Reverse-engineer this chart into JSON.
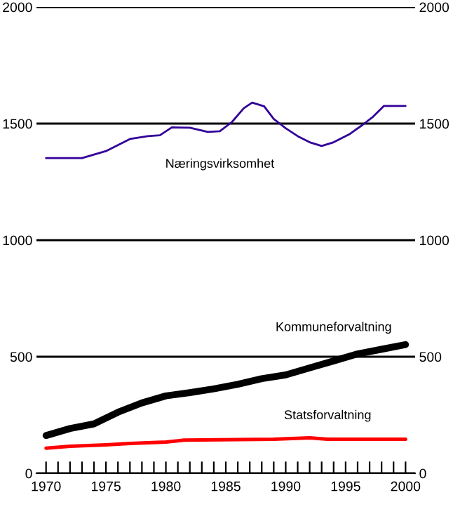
{
  "chart_data": {
    "type": "line",
    "xlim": [
      1969.2,
      2000.8
    ],
    "xticks": [
      1970,
      {
        "value": 1971,
        "label": null
      },
      {
        "value": 1972,
        "label": null
      },
      {
        "value": 1973,
        "label": null
      },
      {
        "value": 1974,
        "label": null
      },
      1975,
      {
        "value": 1976,
        "label": null
      },
      {
        "value": 1977,
        "label": null
      },
      {
        "value": 1978,
        "label": null
      },
      {
        "value": 1979,
        "label": null
      },
      1980,
      {
        "value": 1981,
        "label": null
      },
      {
        "value": 1982,
        "label": null
      },
      {
        "value": 1983,
        "label": null
      },
      {
        "value": 1984,
        "label": null
      },
      1985,
      {
        "value": 1986,
        "label": null
      },
      {
        "value": 1987,
        "label": null
      },
      {
        "value": 1988,
        "label": null
      },
      {
        "value": 1989,
        "label": null
      },
      1990,
      {
        "value": 1991,
        "label": null
      },
      {
        "value": 1992,
        "label": null
      },
      {
        "value": 1993,
        "label": null
      },
      {
        "value": 1994,
        "label": null
      },
      1995,
      {
        "value": 1996,
        "label": null
      },
      {
        "value": 1997,
        "label": null
      },
      {
        "value": 1998,
        "label": null
      },
      {
        "value": 1999,
        "label": null
      },
      2000
    ],
    "ylim": [
      0,
      2000
    ],
    "yticks": [
      0,
      500,
      1000,
      1500,
      2000
    ],
    "y2lim": [
      0,
      2000
    ],
    "y2ticks": [
      0,
      500,
      1000,
      1500,
      2000
    ],
    "grid": "y",
    "legend": false,
    "marker": "none",
    "line_style": "solid",
    "series": [
      {
        "name": "Næringsvirksomhet",
        "color": "#330099",
        "x": [
          1970,
          1973,
          1975,
          1977,
          1978.5,
          1979.5,
          1980.5,
          1982,
          1983.5,
          1984.5,
          1985.5,
          1986.5,
          1987.2,
          1988.2,
          1989,
          1990,
          1991,
          1992,
          1993,
          1994,
          1995.3,
          1996.4,
          1997.3,
          1998.2,
          2000
        ],
        "values": [
          1352,
          1352,
          1382,
          1434,
          1446,
          1450,
          1484,
          1482,
          1464,
          1467,
          1506,
          1566,
          1590,
          1574,
          1520,
          1480,
          1446,
          1420,
          1404,
          1420,
          1454,
          1494,
          1530,
          1576,
          1576
        ]
      },
      {
        "name": "Kommuneforvaltning",
        "color": "#000000",
        "x": [
          1970,
          1972,
          1974,
          1976,
          1978,
          1980,
          1982,
          1984,
          1986,
          1988,
          1990,
          1992,
          1994,
          1996,
          1998,
          2000
        ],
        "values": [
          162,
          192,
          212,
          262,
          302,
          332,
          346,
          362,
          382,
          406,
          422,
          452,
          482,
          512,
          532,
          552
        ]
      },
      {
        "name": "Statsforvaltning",
        "color": "#ff0000",
        "x": [
          1970,
          1972,
          1975,
          1977,
          1980,
          1981.5,
          1989,
          1992,
          1993.5,
          2000
        ],
        "values": [
          108,
          116,
          122,
          128,
          134,
          142,
          146,
          152,
          146,
          146
        ]
      }
    ]
  }
}
